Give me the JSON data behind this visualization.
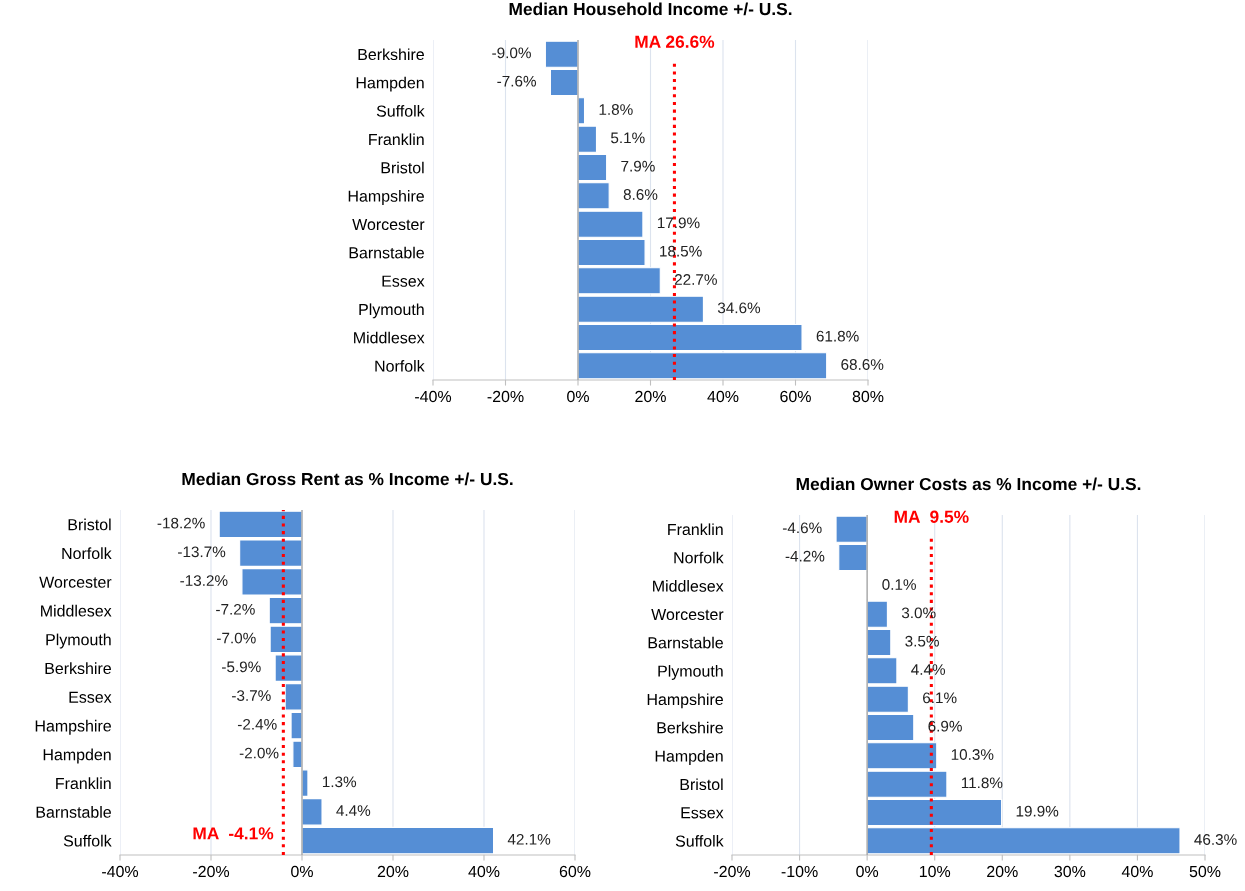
{
  "chart_data": [
    {
      "type": "bar",
      "orientation": "horizontal",
      "title": "Median Household Income +/- U.S.",
      "categories": [
        "Berkshire",
        "Hampden",
        "Suffolk",
        "Franklin",
        "Bristol",
        "Hampshire",
        "Worcester",
        "Barnstable",
        "Essex",
        "Plymouth",
        "Middlesex",
        "Norfolk"
      ],
      "values": [
        -9.0,
        -7.6,
        1.8,
        5.1,
        7.9,
        8.6,
        17.9,
        18.5,
        22.7,
        34.6,
        61.8,
        68.6
      ],
      "value_labels": [
        "-9.0%",
        "-7.6%",
        "1.8%",
        "5.1%",
        "7.9%",
        "8.6%",
        "17.9%",
        "18.5%",
        "22.7%",
        "34.6%",
        "61.8%",
        "68.6%"
      ],
      "color": "#558ed5",
      "xlim": [
        -40,
        80
      ],
      "xticks": [
        {
          "value": -40,
          "label": "-40%"
        },
        {
          "value": -20,
          "label": "-20%"
        },
        {
          "value": 0,
          "label": "0%"
        },
        {
          "value": 20,
          "label": "20%"
        },
        {
          "value": 40,
          "label": "40%"
        },
        {
          "value": 60,
          "label": "60%"
        },
        {
          "value": 80,
          "label": "80%"
        }
      ],
      "ref_lines": [
        {
          "axis": "x",
          "value": 26.6,
          "label": "MA 26.6%",
          "color": "#ff0000",
          "line_style": "dotted"
        }
      ],
      "grid": "x",
      "legend": false
    },
    {
      "type": "bar",
      "orientation": "horizontal",
      "title": "Median Gross Rent as % Income +/- U.S.",
      "categories": [
        "Bristol",
        "Norfolk",
        "Worcester",
        "Middlesex",
        "Plymouth",
        "Berkshire",
        "Essex",
        "Hampshire",
        "Hampden",
        "Franklin",
        "Barnstable",
        "Suffolk"
      ],
      "values": [
        -18.2,
        -13.7,
        -13.2,
        -7.2,
        -7.0,
        -5.9,
        -3.7,
        -2.4,
        -2.0,
        1.3,
        4.4,
        42.1
      ],
      "value_labels": [
        "-18.2%",
        "-13.7%",
        "-13.2%",
        "-7.2%",
        "-7.0%",
        "-5.9%",
        "-3.7%",
        "-2.4%",
        "-2.0%",
        "1.3%",
        "4.4%",
        "42.1%"
      ],
      "color": "#558ed5",
      "xlim": [
        -40,
        60
      ],
      "xticks": [
        {
          "value": -40,
          "label": "-40%"
        },
        {
          "value": -20,
          "label": "-20%"
        },
        {
          "value": 0,
          "label": "0%"
        },
        {
          "value": 20,
          "label": "20%"
        },
        {
          "value": 40,
          "label": "40%"
        },
        {
          "value": 60,
          "label": "60%"
        }
      ],
      "ref_lines": [
        {
          "axis": "x",
          "value": -4.1,
          "label": "MA  -4.1%",
          "color": "#ff0000",
          "line_style": "dotted"
        }
      ],
      "grid": "x",
      "legend": false
    },
    {
      "type": "bar",
      "orientation": "horizontal",
      "title": "Median Owner Costs as % Income +/- U.S.",
      "categories": [
        "Franklin",
        "Norfolk",
        "Middlesex",
        "Worcester",
        "Barnstable",
        "Plymouth",
        "Hampshire",
        "Berkshire",
        "Hampden",
        "Bristol",
        "Essex",
        "Suffolk"
      ],
      "values": [
        -4.6,
        -4.2,
        0.1,
        3.0,
        3.5,
        4.4,
        6.1,
        6.9,
        10.3,
        11.8,
        19.9,
        46.3
      ],
      "value_labels": [
        "-4.6%",
        "-4.2%",
        "0.1%",
        "3.0%",
        "3.5%",
        "4.4%",
        "6.1%",
        "6.9%",
        "10.3%",
        "11.8%",
        "19.9%",
        "46.3%"
      ],
      "color": "#558ed5",
      "xlim": [
        -20,
        50
      ],
      "xticks": [
        {
          "value": -20,
          "label": "-20%"
        },
        {
          "value": -10,
          "label": "-10%"
        },
        {
          "value": 0,
          "label": "0%"
        },
        {
          "value": 10,
          "label": "10%"
        },
        {
          "value": 20,
          "label": "20%"
        },
        {
          "value": 30,
          "label": "30%"
        },
        {
          "value": 40,
          "label": "40%"
        },
        {
          "value": 50,
          "label": "50%"
        }
      ],
      "ref_lines": [
        {
          "axis": "x",
          "value": 9.5,
          "label": "MA  9.5%",
          "color": "#ff0000",
          "line_style": "dotted"
        }
      ],
      "grid": "x",
      "legend": false
    }
  ]
}
